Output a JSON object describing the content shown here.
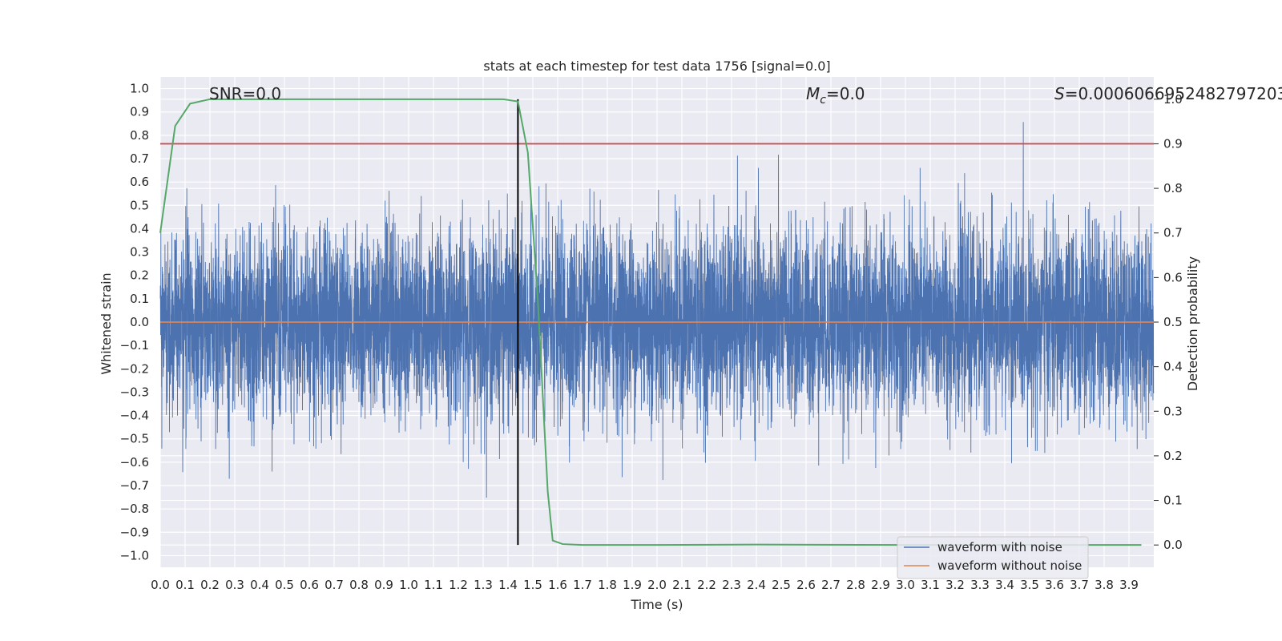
{
  "chart_data": {
    "type": "line",
    "title": "stats at each timestep for test data 1756 [signal=0.0]",
    "xlabel": "Time (s)",
    "ylabel": "Whitened strain",
    "y2label": "Detection probability",
    "xlim": [
      0.0,
      4.0
    ],
    "ylim": [
      -1.05,
      1.05
    ],
    "y2lim": [
      -0.05,
      1.05
    ],
    "xticks": [
      0.0,
      0.1,
      0.2,
      0.3,
      0.4,
      0.5,
      0.6,
      0.7,
      0.8,
      0.9,
      1.0,
      1.1,
      1.2,
      1.3,
      1.4,
      1.5,
      1.6,
      1.7,
      1.8,
      1.9,
      2.0,
      2.1,
      2.2,
      2.3,
      2.4,
      2.5,
      2.6,
      2.7,
      2.8,
      2.9,
      3.0,
      3.1,
      3.2,
      3.3,
      3.4,
      3.5,
      3.6,
      3.7,
      3.8,
      3.9
    ],
    "yticks": [
      -1.0,
      -0.9,
      -0.8,
      -0.7,
      -0.6,
      -0.5,
      -0.4,
      -0.3,
      -0.2,
      -0.1,
      0.0,
      0.1,
      0.2,
      0.3,
      0.4,
      0.5,
      0.6,
      0.7,
      0.8,
      0.9,
      1.0
    ],
    "y2ticks": [
      0.0,
      0.1,
      0.2,
      0.3,
      0.4,
      0.5,
      0.6,
      0.7,
      0.8,
      0.9,
      1.0
    ],
    "grid": true,
    "legend_position": "lower-right",
    "annotations": {
      "snr": "SNR=0.0",
      "mc_symbol": "M",
      "mc_sub": "c",
      "mc_value": "=0.0",
      "s_symbol": "S",
      "s_value": "=0.0006066952482797203"
    },
    "series": [
      {
        "name": "waveform with noise",
        "color": "#4c72b0",
        "kind": "noise",
        "sample_rate": 2048,
        "duration": 4.0,
        "std": 0.2,
        "max": 1.0,
        "min": -0.93
      },
      {
        "name": "waveform without noise",
        "color": "#dd8452",
        "kind": "flat",
        "x": [
          0.0,
          4.0
        ],
        "y": [
          0.0,
          0.0
        ]
      }
    ],
    "probability": {
      "color": "#55a868",
      "axis": "right",
      "x": [
        0.0,
        0.06,
        0.12,
        0.2,
        0.3,
        0.5,
        0.8,
        1.0,
        1.2,
        1.38,
        1.44,
        1.48,
        1.52,
        1.56,
        1.58,
        1.62,
        1.7,
        2.0,
        2.4,
        3.0,
        3.5,
        3.95
      ],
      "y": [
        0.7,
        0.94,
        0.99,
        1.0,
        1.0,
        1.0,
        1.0,
        1.0,
        1.0,
        1.0,
        0.995,
        0.88,
        0.55,
        0.12,
        0.01,
        0.002,
        0.0,
        0.0,
        0.001,
        0.0,
        0.0,
        0.0
      ]
    },
    "threshold": {
      "axis": "right",
      "value": 0.9,
      "color": "#c44e52"
    },
    "event_marker": {
      "x": 1.44,
      "axis": "right",
      "from": 0.0,
      "to": 1.0,
      "color": "#000000"
    }
  }
}
